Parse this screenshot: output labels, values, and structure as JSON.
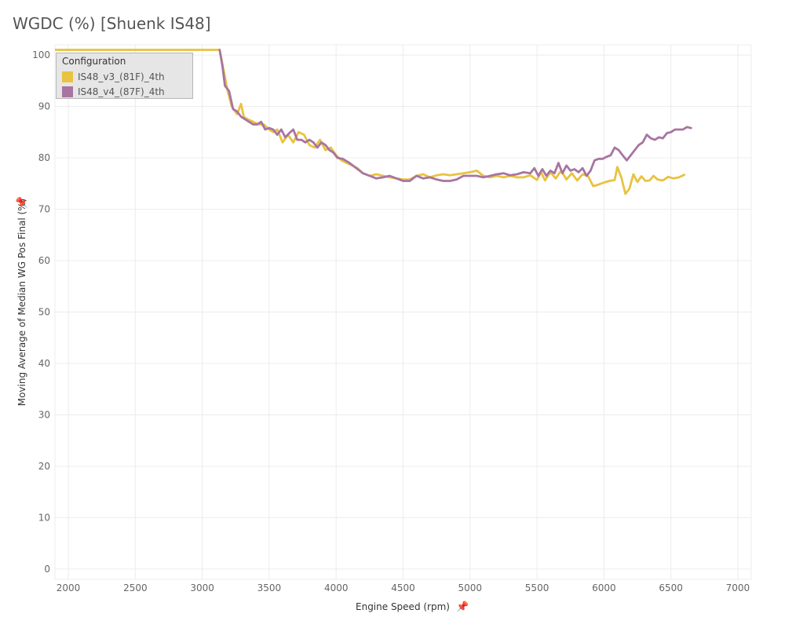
{
  "title": "WGDC (%) [Shuenk IS48]",
  "legend": {
    "title": "Configuration",
    "items": [
      {
        "label": "IS48_v3_(81F)_4th",
        "color": "#e8c33f"
      },
      {
        "label": "IS48_v4_(87F)_4th",
        "color": "#a874a0"
      }
    ]
  },
  "chart_data": {
    "type": "line",
    "title": "WGDC (%) [Shuenk IS48]",
    "xlabel": "Engine Speed (rpm)",
    "ylabel": "Moving Average of Median WG Pos Final (%)",
    "xlim": [
      1900,
      7100
    ],
    "ylim": [
      -2,
      102
    ],
    "xticks": [
      2000,
      2500,
      3000,
      3500,
      4000,
      4500,
      5000,
      5500,
      6000,
      6500,
      7000
    ],
    "yticks": [
      0,
      10,
      20,
      30,
      40,
      50,
      60,
      70,
      80,
      90,
      100
    ],
    "grid": true,
    "legend_position": "top-left",
    "series": [
      {
        "name": "IS48_v3_(81F)_4th",
        "color": "#e8c33f",
        "x": [
          1900,
          3000,
          3130,
          3160,
          3190,
          3220,
          3260,
          3290,
          3310,
          3340,
          3380,
          3420,
          3460,
          3500,
          3530,
          3560,
          3600,
          3640,
          3680,
          3720,
          3760,
          3800,
          3840,
          3880,
          3920,
          3960,
          4000,
          4040,
          4080,
          4120,
          4160,
          4200,
          4250,
          4300,
          4350,
          4400,
          4450,
          4500,
          4550,
          4600,
          4650,
          4700,
          4750,
          4800,
          4850,
          4900,
          4950,
          5000,
          5050,
          5100,
          5150,
          5200,
          5250,
          5300,
          5350,
          5400,
          5450,
          5500,
          5530,
          5560,
          5600,
          5640,
          5680,
          5720,
          5760,
          5800,
          5840,
          5880,
          5920,
          5960,
          6000,
          6040,
          6080,
          6100,
          6130,
          6160,
          6190,
          6220,
          6250,
          6280,
          6310,
          6340,
          6370,
          6400,
          6440,
          6480,
          6520,
          6560,
          6600
        ],
        "y": [
          101,
          101,
          101,
          97,
          93,
          90,
          88.5,
          90.5,
          88,
          87.5,
          87,
          86.5,
          86.5,
          85.5,
          85,
          85.5,
          83,
          84.5,
          83,
          85,
          84.5,
          82.5,
          82,
          83.5,
          81.5,
          82,
          80.5,
          79.5,
          79,
          78.5,
          78,
          77,
          76.5,
          76.8,
          76.5,
          76.2,
          76,
          75.8,
          75.8,
          76.5,
          76.8,
          76.2,
          76.6,
          76.8,
          76.6,
          76.8,
          77,
          77.2,
          77.5,
          76.5,
          76.2,
          76.5,
          76.2,
          76.5,
          76.2,
          76.2,
          76.6,
          75.7,
          77.2,
          75.6,
          77.2,
          76,
          77.5,
          75.8,
          77,
          75.6,
          76.8,
          76.5,
          74.5,
          74.8,
          75.2,
          75.5,
          75.7,
          78.2,
          76.2,
          73,
          74,
          76.8,
          75.3,
          76.4,
          75.5,
          75.6,
          76.5,
          75.8,
          75.6,
          76.3,
          76,
          76.2,
          76.7
        ]
      },
      {
        "name": "IS48_v4_(87F)_4th",
        "color": "#a874a0",
        "x": [
          3130,
          3150,
          3170,
          3200,
          3230,
          3260,
          3290,
          3320,
          3350,
          3380,
          3410,
          3440,
          3470,
          3500,
          3530,
          3560,
          3590,
          3620,
          3650,
          3680,
          3710,
          3740,
          3770,
          3800,
          3830,
          3860,
          3890,
          3920,
          3950,
          3980,
          4010,
          4050,
          4100,
          4150,
          4200,
          4250,
          4300,
          4350,
          4400,
          4450,
          4500,
          4550,
          4600,
          4650,
          4700,
          4750,
          4800,
          4850,
          4900,
          4950,
          5000,
          5050,
          5100,
          5150,
          5200,
          5250,
          5300,
          5350,
          5400,
          5450,
          5480,
          5510,
          5540,
          5570,
          5600,
          5630,
          5660,
          5690,
          5720,
          5750,
          5780,
          5810,
          5840,
          5870,
          5900,
          5930,
          5960,
          5990,
          6020,
          6050,
          6080,
          6110,
          6140,
          6170,
          6200,
          6230,
          6260,
          6290,
          6320,
          6350,
          6380,
          6410,
          6440,
          6470,
          6500,
          6530,
          6560,
          6590,
          6620,
          6650
        ],
        "y": [
          101,
          98,
          94,
          93,
          89.5,
          89,
          88,
          87.5,
          87,
          86.5,
          86.5,
          87,
          85.5,
          85.8,
          85.5,
          84.5,
          85.5,
          84,
          84.8,
          85.5,
          83.5,
          83.5,
          83,
          83.5,
          83,
          82,
          83,
          82.5,
          81.5,
          81,
          80,
          79.8,
          79,
          78,
          77,
          76.5,
          76,
          76.2,
          76.5,
          76,
          75.5,
          75.5,
          76.5,
          76,
          76.2,
          75.8,
          75.5,
          75.5,
          75.8,
          76.5,
          76.5,
          76.5,
          76.2,
          76.5,
          76.8,
          77,
          76.6,
          76.8,
          77.2,
          77,
          78,
          76.5,
          77.8,
          76.5,
          77.5,
          77,
          79,
          77,
          78.5,
          77.5,
          77.8,
          77.2,
          78,
          76.5,
          77.5,
          79.5,
          79.8,
          79.8,
          80.2,
          80.5,
          82,
          81.5,
          80.5,
          79.5,
          80.5,
          81.5,
          82.5,
          83,
          84.5,
          83.8,
          83.5,
          84,
          83.8,
          84.8,
          85,
          85.5,
          85.5,
          85.5,
          86,
          85.8
        ]
      }
    ]
  }
}
